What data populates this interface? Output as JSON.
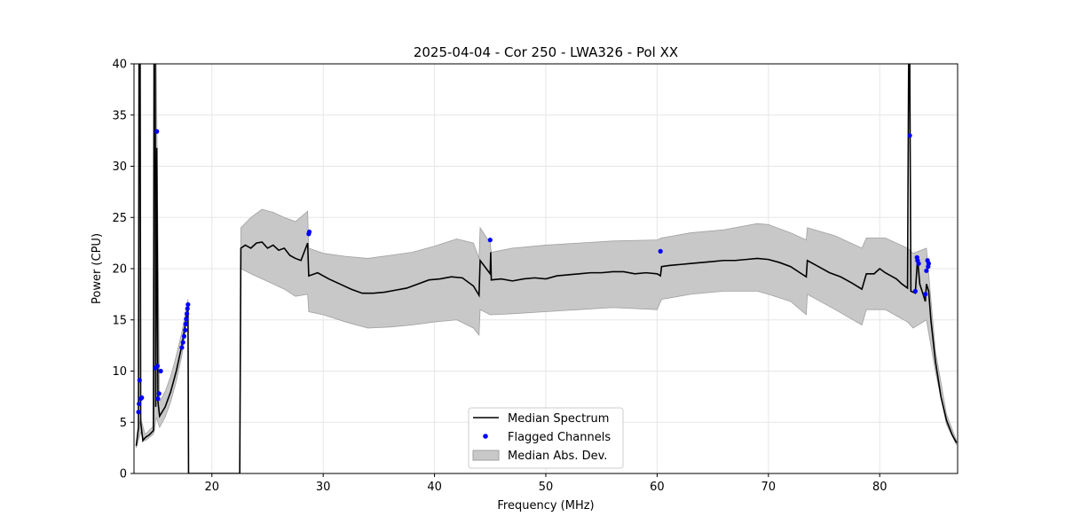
{
  "chart_data": {
    "type": "line",
    "title": "2025-04-04 - Cor 250 - LWA326 - Pol XX",
    "xlabel": "Frequency (MHz)",
    "ylabel": "Power (CPU)",
    "xlim": [
      13.0,
      87.0
    ],
    "ylim": [
      0,
      40
    ],
    "xticks": [
      20,
      30,
      40,
      50,
      60,
      70,
      80
    ],
    "yticks": [
      0,
      5,
      10,
      15,
      20,
      25,
      30,
      35,
      40
    ],
    "grid": true,
    "legend_position": "lower-center",
    "legend": [
      "Median Spectrum",
      "Flagged Channels",
      "Median Abs. Dev."
    ],
    "colors": {
      "median": "#000000",
      "flagged": "#0000ff",
      "mad_fill": "#c8c8c8",
      "mad_edge": "#a0a0a0",
      "grid": "#e6e6e6"
    },
    "series": [
      {
        "name": "Median Spectrum",
        "points": [
          [
            13.2,
            2.7
          ],
          [
            13.4,
            4.5
          ],
          [
            13.45,
            40
          ],
          [
            13.55,
            40
          ],
          [
            13.6,
            5.0
          ],
          [
            13.8,
            3.2
          ],
          [
            14.0,
            3.5
          ],
          [
            14.4,
            3.8
          ],
          [
            14.75,
            4.2
          ],
          [
            14.8,
            40
          ],
          [
            14.9,
            40
          ],
          [
            14.95,
            6.5
          ],
          [
            15.05,
            31.8
          ],
          [
            15.15,
            7.0
          ],
          [
            15.3,
            5.6
          ],
          [
            15.8,
            6.5
          ],
          [
            16.3,
            8.0
          ],
          [
            16.8,
            10.0
          ],
          [
            17.3,
            12.5
          ],
          [
            17.6,
            14.5
          ],
          [
            17.85,
            16.3
          ],
          [
            17.9,
            0.0
          ],
          [
            22.5,
            0.0
          ],
          [
            22.6,
            22.0
          ],
          [
            23.0,
            22.3
          ],
          [
            23.5,
            22.0
          ],
          [
            24.0,
            22.5
          ],
          [
            24.5,
            22.6
          ],
          [
            25.0,
            22.0
          ],
          [
            25.5,
            22.3
          ],
          [
            26.0,
            21.8
          ],
          [
            26.5,
            22.0
          ],
          [
            27.0,
            21.3
          ],
          [
            27.5,
            21.0
          ],
          [
            28.0,
            20.8
          ],
          [
            28.6,
            22.5
          ],
          [
            28.7,
            19.3
          ],
          [
            29.5,
            19.6
          ],
          [
            30.5,
            19.0
          ],
          [
            31.5,
            18.5
          ],
          [
            32.5,
            18.0
          ],
          [
            33.5,
            17.6
          ],
          [
            34.5,
            17.6
          ],
          [
            35.5,
            17.7
          ],
          [
            36.5,
            17.9
          ],
          [
            37.5,
            18.1
          ],
          [
            38.5,
            18.5
          ],
          [
            39.5,
            18.9
          ],
          [
            40.5,
            19.0
          ],
          [
            41.5,
            19.2
          ],
          [
            42.5,
            19.1
          ],
          [
            43.5,
            18.3
          ],
          [
            44.0,
            17.4
          ],
          [
            44.1,
            20.8
          ],
          [
            45.0,
            19.5
          ],
          [
            45.05,
            21.6
          ],
          [
            45.1,
            18.9
          ],
          [
            46.0,
            19.0
          ],
          [
            47.0,
            18.8
          ],
          [
            48.0,
            19.0
          ],
          [
            49.0,
            19.1
          ],
          [
            50.0,
            19.0
          ],
          [
            51.0,
            19.3
          ],
          [
            52.0,
            19.4
          ],
          [
            53.0,
            19.5
          ],
          [
            54.0,
            19.6
          ],
          [
            55.0,
            19.6
          ],
          [
            56.0,
            19.7
          ],
          [
            57.0,
            19.7
          ],
          [
            58.0,
            19.5
          ],
          [
            59.0,
            19.6
          ],
          [
            60.0,
            19.5
          ],
          [
            60.3,
            19.3
          ],
          [
            60.4,
            20.2
          ],
          [
            61.0,
            20.3
          ],
          [
            62.0,
            20.4
          ],
          [
            63.0,
            20.5
          ],
          [
            64.0,
            20.6
          ],
          [
            65.0,
            20.7
          ],
          [
            66.0,
            20.8
          ],
          [
            67.0,
            20.8
          ],
          [
            68.0,
            20.9
          ],
          [
            69.0,
            21.0
          ],
          [
            70.0,
            20.9
          ],
          [
            71.0,
            20.6
          ],
          [
            72.0,
            20.2
          ],
          [
            73.4,
            19.2
          ],
          [
            73.5,
            20.8
          ],
          [
            74.5,
            20.2
          ],
          [
            75.5,
            19.6
          ],
          [
            76.5,
            19.2
          ],
          [
            77.5,
            18.6
          ],
          [
            78.4,
            18.0
          ],
          [
            78.8,
            19.5
          ],
          [
            79.5,
            19.5
          ],
          [
            80.0,
            20.0
          ],
          [
            80.5,
            19.6
          ],
          [
            81.0,
            19.3
          ],
          [
            81.5,
            19.0
          ],
          [
            82.0,
            18.5
          ],
          [
            82.5,
            18.1
          ],
          [
            82.6,
            40
          ],
          [
            82.7,
            40
          ],
          [
            82.8,
            17.8
          ],
          [
            83.2,
            17.6
          ],
          [
            83.4,
            21.0
          ],
          [
            83.6,
            18.5
          ],
          [
            83.9,
            17.5
          ],
          [
            84.1,
            16.8
          ],
          [
            84.2,
            18.5
          ],
          [
            84.4,
            17.8
          ],
          [
            84.6,
            15.0
          ],
          [
            85.0,
            11.0
          ],
          [
            85.5,
            7.5
          ],
          [
            86.0,
            5.2
          ],
          [
            86.5,
            3.8
          ],
          [
            86.9,
            3.0
          ]
        ]
      },
      {
        "name": "Median Abs. Dev.",
        "upper": [
          [
            13.2,
            2.9
          ],
          [
            13.6,
            5.4
          ],
          [
            14.0,
            3.8
          ],
          [
            14.7,
            4.6
          ],
          [
            14.8,
            40
          ],
          [
            15.0,
            40
          ],
          [
            15.3,
            7.0
          ],
          [
            15.8,
            8.0
          ],
          [
            16.3,
            9.5
          ],
          [
            16.8,
            11.5
          ],
          [
            17.3,
            13.8
          ],
          [
            17.85,
            17.0
          ],
          [
            17.9,
            0.0
          ],
          [
            22.5,
            0.0
          ],
          [
            22.6,
            24.0
          ],
          [
            23.5,
            25.0
          ],
          [
            24.5,
            25.8
          ],
          [
            25.5,
            25.5
          ],
          [
            26.5,
            25.0
          ],
          [
            27.5,
            24.6
          ],
          [
            28.6,
            25.6
          ],
          [
            28.7,
            22.0
          ],
          [
            30.0,
            21.5
          ],
          [
            32.0,
            21.2
          ],
          [
            34.0,
            21.0
          ],
          [
            36.0,
            21.3
          ],
          [
            38.0,
            21.6
          ],
          [
            40.0,
            22.2
          ],
          [
            42.0,
            22.9
          ],
          [
            43.5,
            22.5
          ],
          [
            44.0,
            21.0
          ],
          [
            44.1,
            24.0
          ],
          [
            45.0,
            22.5
          ],
          [
            45.1,
            21.6
          ],
          [
            47.0,
            22.0
          ],
          [
            50.0,
            22.3
          ],
          [
            53.0,
            22.5
          ],
          [
            56.0,
            22.7
          ],
          [
            60.0,
            22.8
          ],
          [
            60.4,
            23.0
          ],
          [
            63.0,
            23.5
          ],
          [
            66.0,
            23.8
          ],
          [
            69.0,
            24.4
          ],
          [
            70.0,
            24.3
          ],
          [
            72.0,
            23.5
          ],
          [
            73.4,
            22.8
          ],
          [
            73.5,
            24.0
          ],
          [
            76.0,
            23.2
          ],
          [
            78.4,
            22.0
          ],
          [
            78.8,
            23.0
          ],
          [
            80.5,
            23.0
          ],
          [
            82.5,
            22.0
          ],
          [
            83.0,
            21.5
          ],
          [
            84.2,
            22.0
          ],
          [
            85.0,
            12.0
          ],
          [
            86.0,
            5.8
          ],
          [
            86.9,
            3.2
          ]
        ],
        "lower": [
          [
            13.2,
            2.5
          ],
          [
            13.6,
            4.0
          ],
          [
            14.0,
            3.2
          ],
          [
            14.7,
            3.8
          ],
          [
            14.8,
            4.0
          ],
          [
            15.0,
            5.5
          ],
          [
            15.3,
            4.5
          ],
          [
            15.8,
            5.5
          ],
          [
            16.3,
            7.0
          ],
          [
            16.8,
            9.0
          ],
          [
            17.3,
            11.5
          ],
          [
            17.85,
            15.5
          ],
          [
            17.9,
            0.0
          ],
          [
            22.5,
            0.0
          ],
          [
            22.6,
            20.0
          ],
          [
            23.5,
            19.5
          ],
          [
            24.5,
            19.0
          ],
          [
            25.5,
            18.5
          ],
          [
            26.5,
            18.0
          ],
          [
            27.5,
            17.3
          ],
          [
            28.6,
            17.5
          ],
          [
            28.7,
            15.8
          ],
          [
            30.0,
            15.5
          ],
          [
            32.0,
            14.8
          ],
          [
            34.0,
            14.2
          ],
          [
            36.0,
            14.3
          ],
          [
            38.0,
            14.5
          ],
          [
            40.0,
            14.8
          ],
          [
            42.0,
            15.0
          ],
          [
            43.5,
            14.2
          ],
          [
            44.0,
            13.5
          ],
          [
            44.1,
            16.0
          ],
          [
            45.0,
            15.5
          ],
          [
            45.1,
            15.5
          ],
          [
            47.0,
            15.6
          ],
          [
            50.0,
            15.8
          ],
          [
            53.0,
            16.0
          ],
          [
            56.0,
            16.2
          ],
          [
            60.0,
            16.0
          ],
          [
            60.4,
            17.0
          ],
          [
            63.0,
            17.5
          ],
          [
            66.0,
            17.8
          ],
          [
            69.0,
            17.8
          ],
          [
            70.0,
            17.5
          ],
          [
            72.0,
            16.8
          ],
          [
            73.4,
            15.5
          ],
          [
            73.5,
            17.5
          ],
          [
            76.0,
            16.0
          ],
          [
            78.4,
            14.5
          ],
          [
            78.8,
            16.0
          ],
          [
            80.5,
            16.0
          ],
          [
            82.5,
            14.8
          ],
          [
            83.0,
            14.2
          ],
          [
            84.2,
            15.0
          ],
          [
            85.0,
            10.0
          ],
          [
            86.0,
            4.8
          ],
          [
            86.9,
            2.8
          ]
        ]
      },
      {
        "name": "Flagged Channels",
        "points": [
          [
            13.4,
            6.0
          ],
          [
            13.45,
            6.8
          ],
          [
            13.5,
            9.1
          ],
          [
            13.6,
            7.3
          ],
          [
            13.7,
            7.4
          ],
          [
            14.9,
            10.3
          ],
          [
            15.05,
            33.4
          ],
          [
            15.1,
            10.5
          ],
          [
            15.15,
            7.3
          ],
          [
            15.25,
            7.8
          ],
          [
            15.4,
            10.0
          ],
          [
            17.3,
            12.3
          ],
          [
            17.4,
            12.8
          ],
          [
            17.5,
            13.4
          ],
          [
            17.6,
            14.0
          ],
          [
            17.65,
            14.6
          ],
          [
            17.7,
            15.1
          ],
          [
            17.75,
            15.6
          ],
          [
            17.8,
            16.1
          ],
          [
            17.85,
            16.5
          ],
          [
            28.7,
            23.4
          ],
          [
            28.75,
            23.6
          ],
          [
            45.0,
            22.8
          ],
          [
            60.3,
            21.7
          ],
          [
            82.7,
            33.0
          ],
          [
            83.2,
            17.8
          ],
          [
            83.35,
            21.1
          ],
          [
            83.4,
            20.8
          ],
          [
            83.5,
            20.5
          ],
          [
            84.1,
            17.5
          ],
          [
            84.2,
            19.8
          ],
          [
            84.3,
            20.8
          ],
          [
            84.35,
            20.2
          ],
          [
            84.4,
            20.5
          ]
        ]
      }
    ]
  }
}
